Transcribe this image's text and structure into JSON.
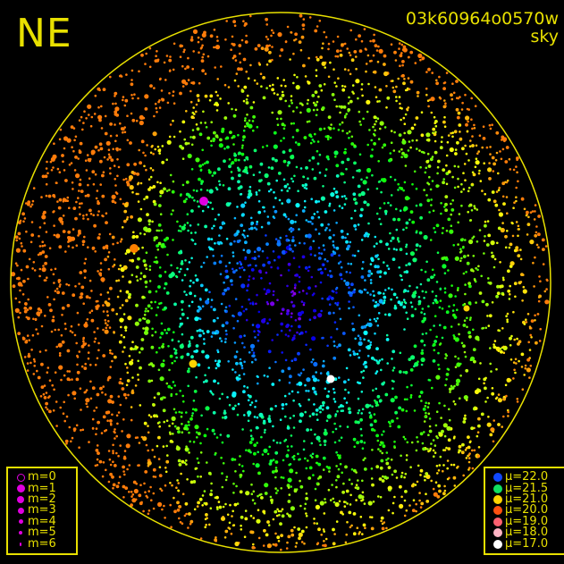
{
  "header": {
    "direction": "NE",
    "observation_id": "03k60964o0570w",
    "view": "sky"
  },
  "colors": {
    "frame": "#e8e000",
    "background": "#000000",
    "magnitude_symbol": "#e000e0"
  },
  "magnitude_legend": [
    {
      "label": "m=0"
    },
    {
      "label": "m=1"
    },
    {
      "label": "m=2"
    },
    {
      "label": "m=3"
    },
    {
      "label": "m=4"
    },
    {
      "label": "m=5"
    },
    {
      "label": "m=6"
    }
  ],
  "brightness_legend": [
    {
      "label": "μ=22.0",
      "color": "#1048ff"
    },
    {
      "label": "μ=21.5",
      "color": "#10e060"
    },
    {
      "label": "μ=21.0",
      "color": "#ffd400"
    },
    {
      "label": "μ=20.0",
      "color": "#ff5010"
    },
    {
      "label": "μ=19.0",
      "color": "#ff6070"
    },
    {
      "label": "μ=18.0",
      "color": "#ffb4c4"
    },
    {
      "label": "μ=17.0",
      "color": "#ffffff"
    }
  ]
}
